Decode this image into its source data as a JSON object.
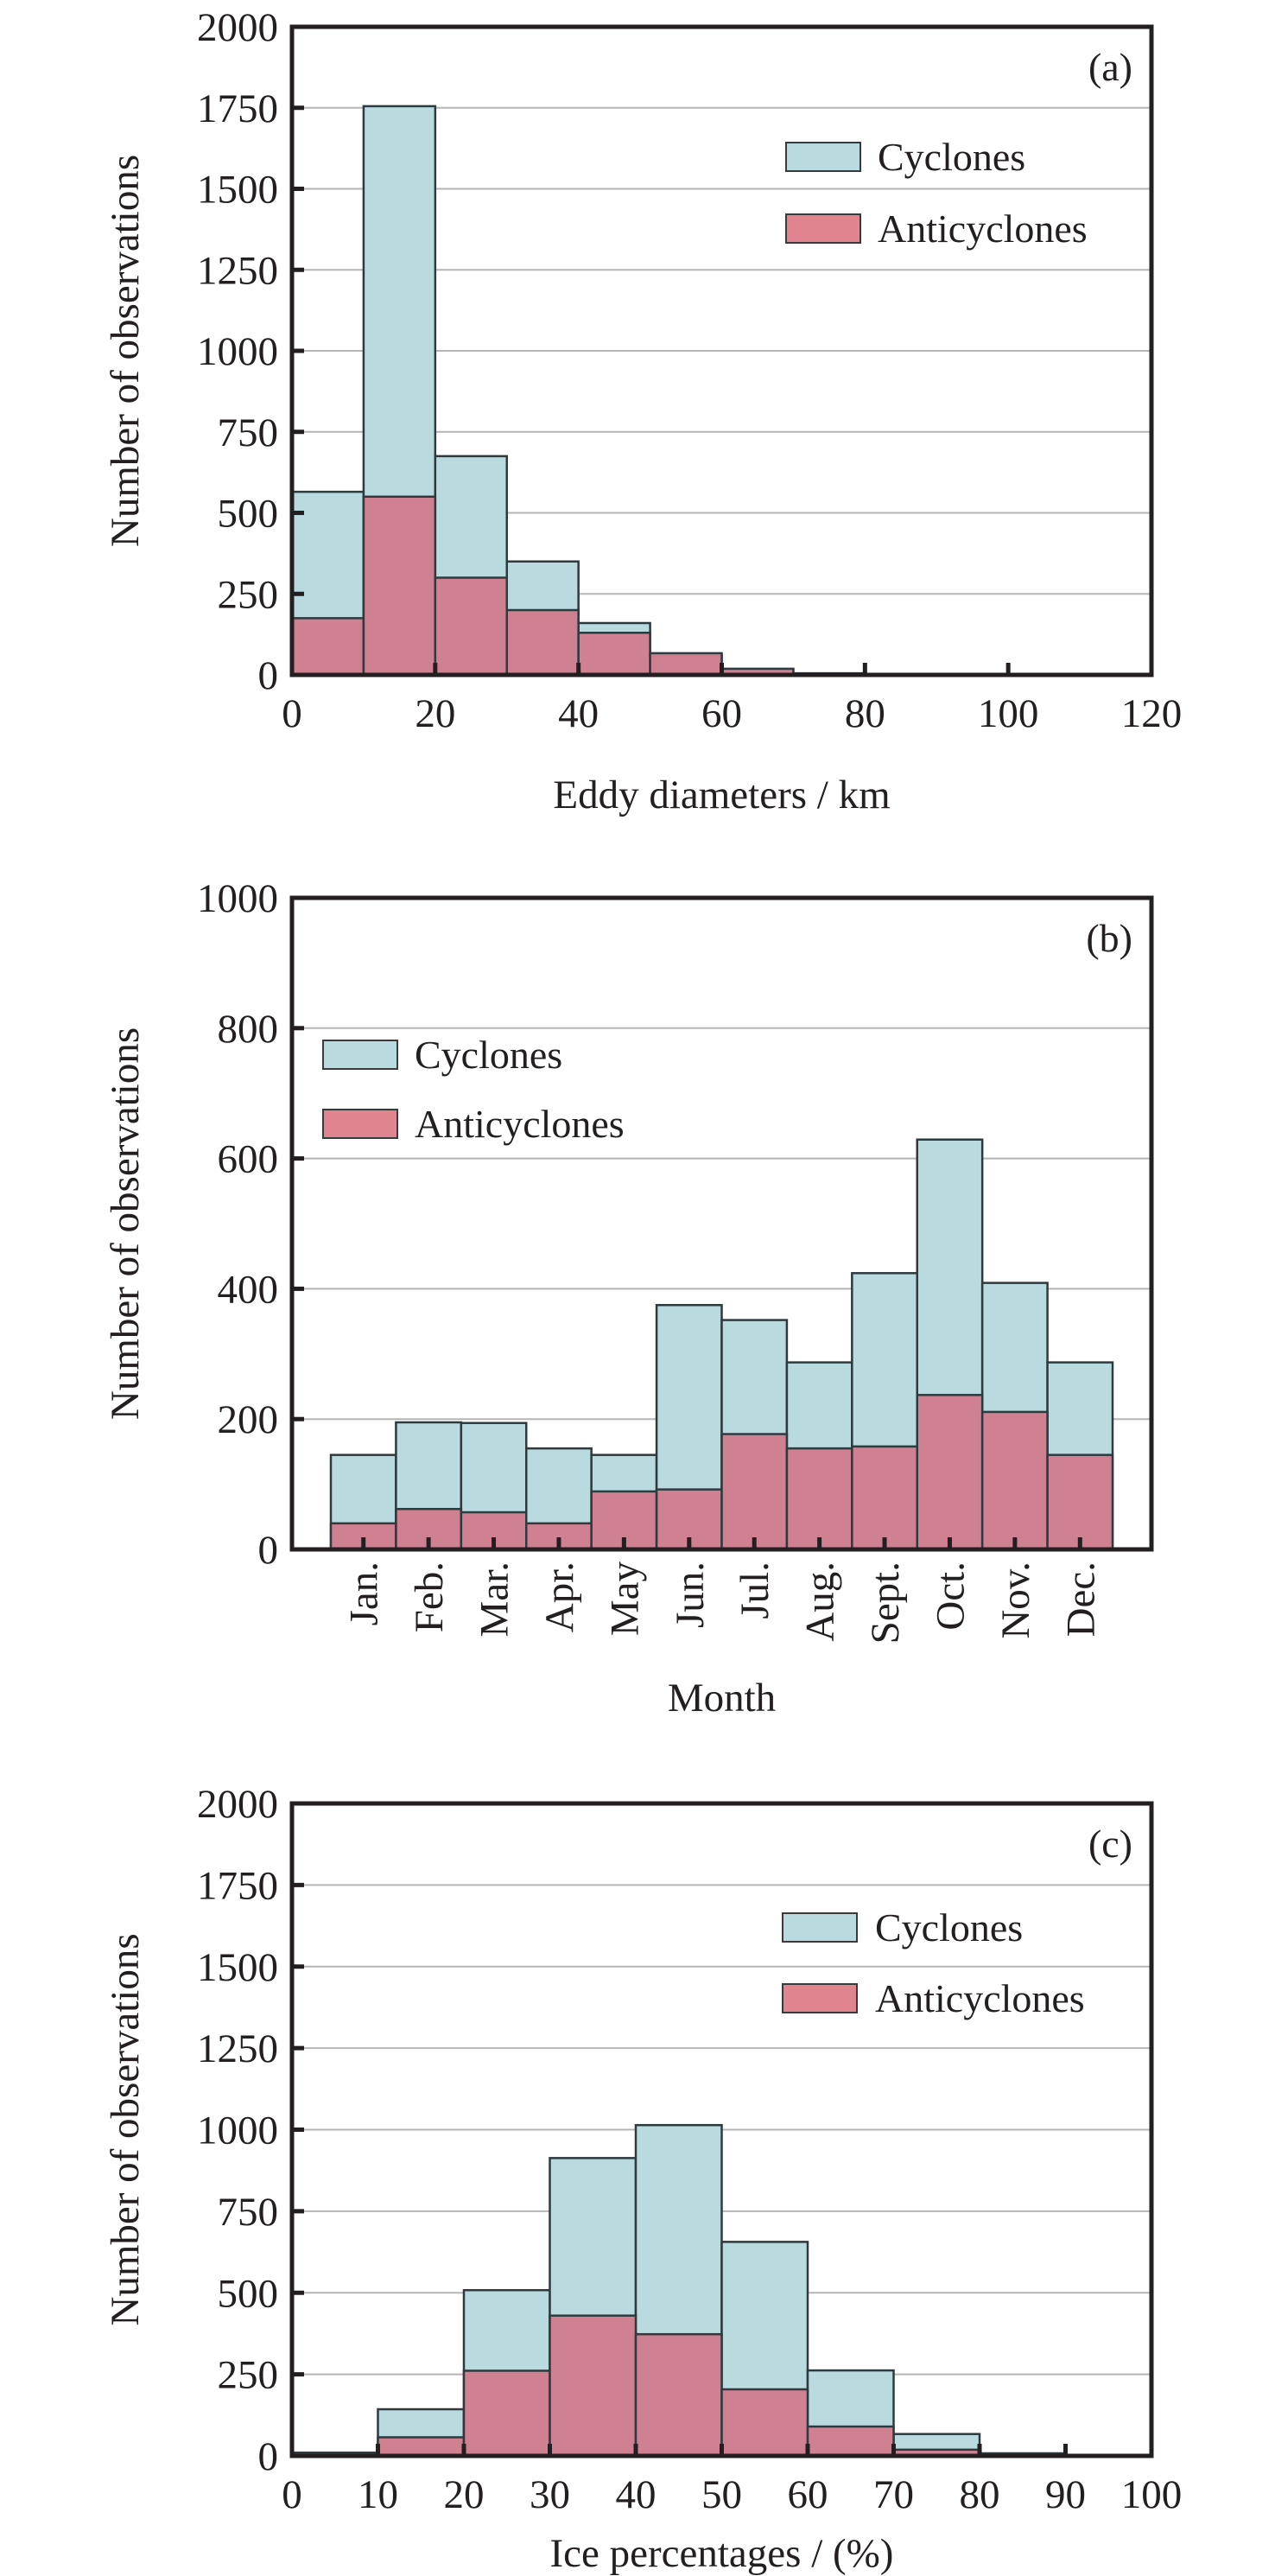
{
  "colors": {
    "cyclones": "#b9dbe0",
    "anticyclones": "#d07e90",
    "legend_anticyclones": "#e0848f",
    "frame": "#231f20",
    "grid": "#b5b5b5"
  },
  "chart_data": [
    {
      "panel": "(a)",
      "type": "bar",
      "subtype": "overlapping-histogram",
      "title": "",
      "xlabel": "Eddy diameters / km",
      "ylabel": "Number of observations",
      "xlim": [
        0,
        120
      ],
      "ylim": [
        0,
        2000
      ],
      "xticks": [
        0,
        20,
        40,
        60,
        80,
        100,
        120
      ],
      "xtick_labels": [
        "0",
        "20",
        "40",
        "60",
        "80",
        "100",
        "120"
      ],
      "yticks": [
        0,
        250,
        500,
        750,
        1000,
        1250,
        1500,
        1750,
        2000
      ],
      "ytick_labels": [
        "0",
        "250",
        "500",
        "750",
        "1000",
        "1250",
        "1500",
        "1750",
        "2000"
      ],
      "grid": true,
      "legend_position": "top-right",
      "bin_edges": [
        0,
        10,
        20,
        30,
        40,
        50,
        60,
        70,
        80
      ],
      "series": [
        {
          "name": "Cyclones",
          "values": [
            565,
            1755,
            675,
            350,
            160,
            60,
            17,
            4
          ]
        },
        {
          "name": "Anticyclones",
          "values": [
            175,
            550,
            300,
            200,
            130,
            67,
            19,
            5
          ]
        }
      ]
    },
    {
      "panel": "(b)",
      "type": "bar",
      "subtype": "overlapping-bars",
      "title": "",
      "xlabel": "Month",
      "ylabel": "Number of observations",
      "ylim": [
        0,
        1000
      ],
      "yticks": [
        0,
        200,
        400,
        600,
        800,
        1000
      ],
      "ytick_labels": [
        "0",
        "200",
        "400",
        "600",
        "800",
        "1000"
      ],
      "grid": true,
      "legend_position": "top-left",
      "categories": [
        "Jan.",
        "Feb.",
        "Mar.",
        "Apr.",
        "May",
        "Jun.",
        "Jul.",
        "Aug.",
        "Sept.",
        "Oct.",
        "Nov.",
        "Dec."
      ],
      "series": [
        {
          "name": "Cyclones",
          "values": [
            145,
            195,
            194,
            155,
            145,
            375,
            352,
            287,
            424,
            629,
            409,
            287
          ]
        },
        {
          "name": "Anticyclones",
          "values": [
            40,
            62,
            57,
            40,
            89,
            92,
            177,
            155,
            158,
            237,
            211,
            145
          ]
        }
      ]
    },
    {
      "panel": "(c)",
      "type": "bar",
      "subtype": "overlapping-histogram",
      "title": "",
      "xlabel": "Ice percentages / (%)",
      "ylabel": "Number of observations",
      "xlim": [
        0,
        100
      ],
      "ylim": [
        0,
        2000
      ],
      "xticks": [
        0,
        10,
        20,
        30,
        40,
        50,
        60,
        70,
        80,
        90,
        100
      ],
      "xtick_labels": [
        "0",
        "10",
        "20",
        "30",
        "40",
        "50",
        "60",
        "70",
        "80",
        "90",
        "100"
      ],
      "yticks": [
        0,
        250,
        500,
        750,
        1000,
        1250,
        1500,
        1750,
        2000
      ],
      "ytick_labels": [
        "0",
        "250",
        "500",
        "750",
        "1000",
        "1250",
        "1500",
        "1750",
        "2000"
      ],
      "grid": true,
      "legend_position": "top-right",
      "bin_edges": [
        0,
        10,
        20,
        30,
        40,
        50,
        60,
        70,
        80,
        90
      ],
      "series": [
        {
          "name": "Cyclones",
          "values": [
            8,
            143,
            508,
            913,
            1014,
            656,
            262,
            67,
            8
          ]
        },
        {
          "name": "Anticyclones",
          "values": [
            10,
            57,
            261,
            430,
            373,
            204,
            90,
            19,
            3
          ]
        }
      ]
    }
  ]
}
